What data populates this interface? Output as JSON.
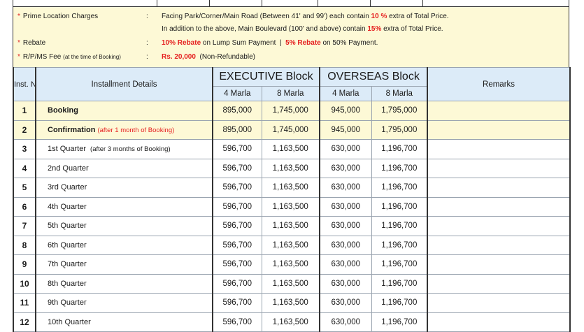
{
  "notes": [
    {
      "label": "Prime Location Charges",
      "lines": [
        {
          "pre": "Facing Park/Corner/Main Road (Between 41' and 99') each contain ",
          "red": "10 %",
          "post": " extra of Total Price."
        },
        {
          "pre": "In addition to the above, Main Boulevard (100' and above) contain ",
          "red": "15%",
          "post": " extra of Total Price."
        }
      ]
    },
    {
      "label": "Rebate",
      "lines": [
        {
          "red": "10% Rebate",
          "mid": " on Lump Sum Payment  |  ",
          "red2": "5% Rebate",
          "post": " on 50% Payment."
        }
      ]
    },
    {
      "label": "R/P/MS Fee",
      "label_note": "(at the time of Booking)",
      "lines": [
        {
          "red": "Rs. 20,000",
          "post": "  (Non-Refundable)"
        }
      ]
    }
  ],
  "table": {
    "headers": {
      "inst_no": "Inst. No.",
      "details": "Installment Details",
      "executive": "EXECUTIVE Block",
      "overseas": "OVERSEAS Block",
      "remarks": "Remarks",
      "marla4": "4 Marla",
      "marla8": "8 Marla"
    },
    "rows": [
      {
        "no": "1",
        "label": "Booking",
        "bold": true,
        "note": "",
        "e4": "895,000",
        "e8": "1,745,000",
        "o4": "945,000",
        "o8": "1,795,000",
        "highlight": true
      },
      {
        "no": "2",
        "label": "Confirmation",
        "bold": true,
        "note_red": "(after 1 month of Booking)",
        "e4": "895,000",
        "e8": "1,745,000",
        "o4": "945,000",
        "o8": "1,795,000",
        "highlight": true
      },
      {
        "no": "3",
        "label": "1st Quarter",
        "note": "(after 3 months of Booking)",
        "e4": "596,700",
        "e8": "1,163,500",
        "o4": "630,000",
        "o8": "1,196,700"
      },
      {
        "no": "4",
        "label": "2nd Quarter",
        "e4": "596,700",
        "e8": "1,163,500",
        "o4": "630,000",
        "o8": "1,196,700"
      },
      {
        "no": "5",
        "label": "3rd Quarter",
        "e4": "596,700",
        "e8": "1,163,500",
        "o4": "630,000",
        "o8": "1,196,700"
      },
      {
        "no": "6",
        "label": "4th Quarter",
        "e4": "596,700",
        "e8": "1,163,500",
        "o4": "630,000",
        "o8": "1,196,700"
      },
      {
        "no": "7",
        "label": "5th Quarter",
        "e4": "596,700",
        "e8": "1,163,500",
        "o4": "630,000",
        "o8": "1,196,700"
      },
      {
        "no": "8",
        "label": "6th Quarter",
        "e4": "596,700",
        "e8": "1,163,500",
        "o4": "630,000",
        "o8": "1,196,700"
      },
      {
        "no": "9",
        "label": "7th Quarter",
        "e4": "596,700",
        "e8": "1,163,500",
        "o4": "630,000",
        "o8": "1,196,700"
      },
      {
        "no": "10",
        "label": "8th Quarter",
        "e4": "596,700",
        "e8": "1,163,500",
        "o4": "630,000",
        "o8": "1,196,700"
      },
      {
        "no": "11",
        "label": "9th Quarter",
        "e4": "596,700",
        "e8": "1,163,500",
        "o4": "630,000",
        "o8": "1,196,700"
      },
      {
        "no": "12",
        "label": "10th Quarter",
        "e4": "596,700",
        "e8": "1,163,500",
        "o4": "630,000",
        "o8": "1,196,700"
      }
    ]
  },
  "colors": {
    "note_bg": "#fdf9d6",
    "header_bg": "#dcebf8",
    "accent_red": "#e52020"
  }
}
